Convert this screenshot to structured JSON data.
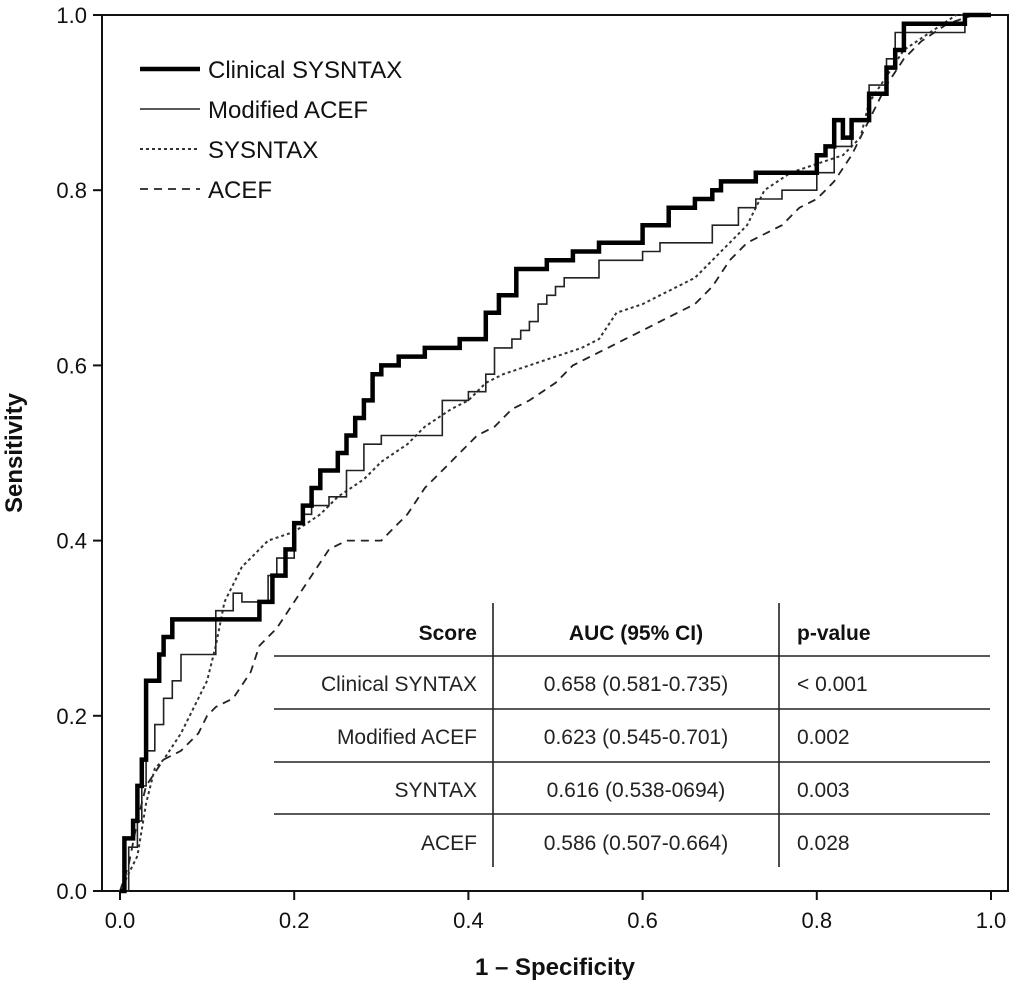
{
  "chart_data": {
    "type": "line",
    "title": "",
    "xlabel": "1 – Specificity",
    "ylabel": "Sensitivity",
    "xlim": [
      0,
      1
    ],
    "ylim": [
      0,
      1
    ],
    "x_ticks": [
      "0.0",
      "0.2",
      "0.4",
      "0.6",
      "0.8",
      "1.0"
    ],
    "y_ticks": [
      "0.0",
      "0.2",
      "0.4",
      "0.6",
      "0.8",
      "1.0"
    ],
    "grid": false,
    "legend_position": "top-left",
    "series": [
      {
        "name": "Clinical SYSNTAX",
        "style": "thick-solid",
        "points": [
          [
            0.0,
            0.0
          ],
          [
            0.005,
            0.0
          ],
          [
            0.005,
            0.06
          ],
          [
            0.015,
            0.06
          ],
          [
            0.015,
            0.08
          ],
          [
            0.02,
            0.08
          ],
          [
            0.02,
            0.12
          ],
          [
            0.025,
            0.12
          ],
          [
            0.025,
            0.15
          ],
          [
            0.03,
            0.15
          ],
          [
            0.03,
            0.24
          ],
          [
            0.045,
            0.24
          ],
          [
            0.045,
            0.27
          ],
          [
            0.05,
            0.27
          ],
          [
            0.05,
            0.29
          ],
          [
            0.06,
            0.29
          ],
          [
            0.06,
            0.31
          ],
          [
            0.16,
            0.31
          ],
          [
            0.16,
            0.33
          ],
          [
            0.175,
            0.33
          ],
          [
            0.175,
            0.36
          ],
          [
            0.19,
            0.36
          ],
          [
            0.19,
            0.39
          ],
          [
            0.2,
            0.39
          ],
          [
            0.2,
            0.42
          ],
          [
            0.21,
            0.42
          ],
          [
            0.21,
            0.44
          ],
          [
            0.22,
            0.44
          ],
          [
            0.22,
            0.46
          ],
          [
            0.23,
            0.46
          ],
          [
            0.23,
            0.48
          ],
          [
            0.25,
            0.48
          ],
          [
            0.25,
            0.5
          ],
          [
            0.26,
            0.5
          ],
          [
            0.26,
            0.52
          ],
          [
            0.27,
            0.52
          ],
          [
            0.27,
            0.54
          ],
          [
            0.28,
            0.54
          ],
          [
            0.28,
            0.56
          ],
          [
            0.29,
            0.56
          ],
          [
            0.29,
            0.59
          ],
          [
            0.3,
            0.59
          ],
          [
            0.3,
            0.6
          ],
          [
            0.32,
            0.6
          ],
          [
            0.32,
            0.61
          ],
          [
            0.35,
            0.61
          ],
          [
            0.35,
            0.62
          ],
          [
            0.39,
            0.62
          ],
          [
            0.39,
            0.63
          ],
          [
            0.42,
            0.63
          ],
          [
            0.42,
            0.66
          ],
          [
            0.435,
            0.66
          ],
          [
            0.435,
            0.68
          ],
          [
            0.455,
            0.68
          ],
          [
            0.455,
            0.71
          ],
          [
            0.49,
            0.71
          ],
          [
            0.49,
            0.72
          ],
          [
            0.52,
            0.72
          ],
          [
            0.52,
            0.73
          ],
          [
            0.55,
            0.73
          ],
          [
            0.55,
            0.74
          ],
          [
            0.6,
            0.74
          ],
          [
            0.6,
            0.76
          ],
          [
            0.63,
            0.76
          ],
          [
            0.63,
            0.78
          ],
          [
            0.66,
            0.78
          ],
          [
            0.66,
            0.79
          ],
          [
            0.68,
            0.79
          ],
          [
            0.68,
            0.8
          ],
          [
            0.69,
            0.8
          ],
          [
            0.69,
            0.81
          ],
          [
            0.73,
            0.81
          ],
          [
            0.73,
            0.82
          ],
          [
            0.8,
            0.82
          ],
          [
            0.8,
            0.84
          ],
          [
            0.81,
            0.84
          ],
          [
            0.81,
            0.85
          ],
          [
            0.82,
            0.85
          ],
          [
            0.82,
            0.88
          ],
          [
            0.83,
            0.88
          ],
          [
            0.83,
            0.86
          ],
          [
            0.84,
            0.86
          ],
          [
            0.84,
            0.88
          ],
          [
            0.86,
            0.88
          ],
          [
            0.86,
            0.91
          ],
          [
            0.88,
            0.91
          ],
          [
            0.88,
            0.94
          ],
          [
            0.89,
            0.94
          ],
          [
            0.89,
            0.96
          ],
          [
            0.9,
            0.96
          ],
          [
            0.9,
            0.99
          ],
          [
            0.97,
            0.99
          ],
          [
            0.97,
            1.0
          ],
          [
            1.0,
            1.0
          ]
        ]
      },
      {
        "name": "Modified ACEF",
        "style": "thin-solid",
        "points": [
          [
            0.0,
            0.0
          ],
          [
            0.01,
            0.0
          ],
          [
            0.01,
            0.05
          ],
          [
            0.02,
            0.05
          ],
          [
            0.02,
            0.08
          ],
          [
            0.025,
            0.08
          ],
          [
            0.025,
            0.12
          ],
          [
            0.03,
            0.12
          ],
          [
            0.03,
            0.16
          ],
          [
            0.04,
            0.16
          ],
          [
            0.04,
            0.19
          ],
          [
            0.05,
            0.19
          ],
          [
            0.05,
            0.22
          ],
          [
            0.06,
            0.22
          ],
          [
            0.06,
            0.24
          ],
          [
            0.07,
            0.24
          ],
          [
            0.07,
            0.27
          ],
          [
            0.11,
            0.27
          ],
          [
            0.11,
            0.32
          ],
          [
            0.13,
            0.32
          ],
          [
            0.13,
            0.34
          ],
          [
            0.14,
            0.34
          ],
          [
            0.14,
            0.33
          ],
          [
            0.17,
            0.33
          ],
          [
            0.17,
            0.36
          ],
          [
            0.18,
            0.36
          ],
          [
            0.18,
            0.38
          ],
          [
            0.2,
            0.38
          ],
          [
            0.2,
            0.42
          ],
          [
            0.21,
            0.42
          ],
          [
            0.21,
            0.43
          ],
          [
            0.22,
            0.43
          ],
          [
            0.22,
            0.44
          ],
          [
            0.24,
            0.44
          ],
          [
            0.24,
            0.45
          ],
          [
            0.26,
            0.45
          ],
          [
            0.26,
            0.48
          ],
          [
            0.28,
            0.48
          ],
          [
            0.28,
            0.51
          ],
          [
            0.3,
            0.51
          ],
          [
            0.3,
            0.52
          ],
          [
            0.37,
            0.52
          ],
          [
            0.37,
            0.56
          ],
          [
            0.4,
            0.56
          ],
          [
            0.4,
            0.57
          ],
          [
            0.42,
            0.57
          ],
          [
            0.42,
            0.59
          ],
          [
            0.43,
            0.59
          ],
          [
            0.43,
            0.62
          ],
          [
            0.45,
            0.62
          ],
          [
            0.45,
            0.63
          ],
          [
            0.46,
            0.63
          ],
          [
            0.46,
            0.64
          ],
          [
            0.47,
            0.64
          ],
          [
            0.47,
            0.65
          ],
          [
            0.48,
            0.65
          ],
          [
            0.48,
            0.67
          ],
          [
            0.49,
            0.67
          ],
          [
            0.49,
            0.68
          ],
          [
            0.5,
            0.68
          ],
          [
            0.5,
            0.69
          ],
          [
            0.51,
            0.69
          ],
          [
            0.51,
            0.7
          ],
          [
            0.55,
            0.7
          ],
          [
            0.55,
            0.72
          ],
          [
            0.6,
            0.72
          ],
          [
            0.6,
            0.73
          ],
          [
            0.62,
            0.73
          ],
          [
            0.62,
            0.74
          ],
          [
            0.68,
            0.74
          ],
          [
            0.68,
            0.76
          ],
          [
            0.71,
            0.76
          ],
          [
            0.71,
            0.78
          ],
          [
            0.73,
            0.78
          ],
          [
            0.73,
            0.79
          ],
          [
            0.76,
            0.79
          ],
          [
            0.76,
            0.8
          ],
          [
            0.8,
            0.8
          ],
          [
            0.8,
            0.82
          ],
          [
            0.82,
            0.82
          ],
          [
            0.82,
            0.85
          ],
          [
            0.84,
            0.85
          ],
          [
            0.84,
            0.88
          ],
          [
            0.86,
            0.88
          ],
          [
            0.86,
            0.92
          ],
          [
            0.88,
            0.92
          ],
          [
            0.88,
            0.95
          ],
          [
            0.89,
            0.95
          ],
          [
            0.89,
            0.98
          ],
          [
            0.97,
            0.98
          ],
          [
            0.97,
            1.0
          ],
          [
            1.0,
            1.0
          ]
        ]
      },
      {
        "name": "SYSNTAX",
        "style": "dotted",
        "points": [
          [
            0.0,
            0.0
          ],
          [
            0.02,
            0.04
          ],
          [
            0.03,
            0.1
          ],
          [
            0.04,
            0.14
          ],
          [
            0.05,
            0.15
          ],
          [
            0.07,
            0.18
          ],
          [
            0.09,
            0.22
          ],
          [
            0.1,
            0.24
          ],
          [
            0.11,
            0.28
          ],
          [
            0.12,
            0.33
          ],
          [
            0.13,
            0.35
          ],
          [
            0.14,
            0.37
          ],
          [
            0.15,
            0.38
          ],
          [
            0.17,
            0.4
          ],
          [
            0.2,
            0.41
          ],
          [
            0.23,
            0.43
          ],
          [
            0.25,
            0.45
          ],
          [
            0.28,
            0.47
          ],
          [
            0.3,
            0.49
          ],
          [
            0.33,
            0.51
          ],
          [
            0.35,
            0.53
          ],
          [
            0.38,
            0.55
          ],
          [
            0.4,
            0.56
          ],
          [
            0.42,
            0.58
          ],
          [
            0.44,
            0.59
          ],
          [
            0.47,
            0.6
          ],
          [
            0.5,
            0.61
          ],
          [
            0.53,
            0.62
          ],
          [
            0.55,
            0.63
          ],
          [
            0.57,
            0.66
          ],
          [
            0.6,
            0.67
          ],
          [
            0.62,
            0.68
          ],
          [
            0.64,
            0.69
          ],
          [
            0.66,
            0.7
          ],
          [
            0.68,
            0.72
          ],
          [
            0.7,
            0.74
          ],
          [
            0.72,
            0.76
          ],
          [
            0.74,
            0.8
          ],
          [
            0.77,
            0.82
          ],
          [
            0.8,
            0.83
          ],
          [
            0.83,
            0.84
          ],
          [
            0.85,
            0.86
          ],
          [
            0.86,
            0.9
          ],
          [
            0.88,
            0.93
          ],
          [
            0.9,
            0.96
          ],
          [
            0.93,
            0.98
          ],
          [
            0.96,
            1.0
          ],
          [
            1.0,
            1.0
          ]
        ]
      },
      {
        "name": "ACEF",
        "style": "dashed",
        "points": [
          [
            0.0,
            0.0
          ],
          [
            0.01,
            0.03
          ],
          [
            0.02,
            0.08
          ],
          [
            0.03,
            0.12
          ],
          [
            0.05,
            0.15
          ],
          [
            0.07,
            0.16
          ],
          [
            0.09,
            0.18
          ],
          [
            0.1,
            0.2
          ],
          [
            0.11,
            0.21
          ],
          [
            0.13,
            0.22
          ],
          [
            0.15,
            0.25
          ],
          [
            0.16,
            0.28
          ],
          [
            0.18,
            0.3
          ],
          [
            0.2,
            0.33
          ],
          [
            0.22,
            0.36
          ],
          [
            0.24,
            0.39
          ],
          [
            0.26,
            0.4
          ],
          [
            0.3,
            0.4
          ],
          [
            0.31,
            0.41
          ],
          [
            0.33,
            0.43
          ],
          [
            0.35,
            0.46
          ],
          [
            0.37,
            0.48
          ],
          [
            0.39,
            0.5
          ],
          [
            0.41,
            0.52
          ],
          [
            0.43,
            0.53
          ],
          [
            0.45,
            0.55
          ],
          [
            0.47,
            0.56
          ],
          [
            0.5,
            0.58
          ],
          [
            0.52,
            0.6
          ],
          [
            0.54,
            0.61
          ],
          [
            0.56,
            0.62
          ],
          [
            0.58,
            0.63
          ],
          [
            0.6,
            0.64
          ],
          [
            0.62,
            0.65
          ],
          [
            0.64,
            0.66
          ],
          [
            0.66,
            0.67
          ],
          [
            0.68,
            0.69
          ],
          [
            0.7,
            0.72
          ],
          [
            0.72,
            0.74
          ],
          [
            0.74,
            0.75
          ],
          [
            0.76,
            0.76
          ],
          [
            0.78,
            0.78
          ],
          [
            0.8,
            0.79
          ],
          [
            0.82,
            0.81
          ],
          [
            0.84,
            0.84
          ],
          [
            0.86,
            0.88
          ],
          [
            0.88,
            0.92
          ],
          [
            0.9,
            0.95
          ],
          [
            0.92,
            0.97
          ],
          [
            0.95,
            0.99
          ],
          [
            0.98,
            1.0
          ],
          [
            1.0,
            1.0
          ]
        ]
      }
    ],
    "table": {
      "headers": [
        "Score",
        "AUC (95% CI)",
        "p-value"
      ],
      "rows": [
        [
          "Clinical SYNTAX",
          "0.658 (0.581-0.735)",
          "< 0.001"
        ],
        [
          "Modified ACEF",
          "0.623 (0.545-0.701)",
          "0.002"
        ],
        [
          "SYNTAX",
          "0.616 (0.538-0694)",
          "0.003"
        ],
        [
          "ACEF",
          "0.586 (0.507-0.664)",
          "0.028"
        ]
      ]
    }
  }
}
